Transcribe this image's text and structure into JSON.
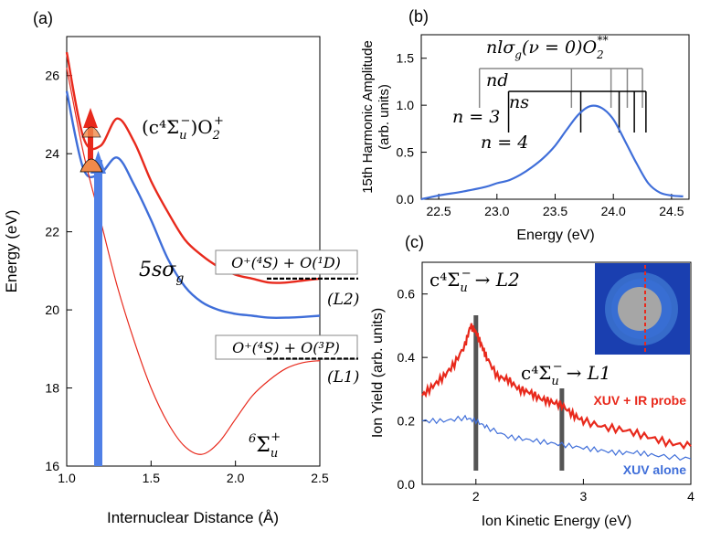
{
  "chart_data": [
    {
      "panel": "(a)",
      "type": "line",
      "xlabel": "Internuclear Distance (Å)",
      "ylabel": "Energy (eV)",
      "xlim": [
        1.0,
        2.5
      ],
      "ylim": [
        16,
        27
      ],
      "xticks": [
        "1.0",
        "1.5",
        "2.0",
        "2.5"
      ],
      "yticks": [
        "16",
        "18",
        "20",
        "22",
        "24",
        "26"
      ],
      "x": [
        1.0,
        1.1,
        1.2,
        1.3,
        1.4,
        1.5,
        1.6,
        1.7,
        1.8,
        1.9,
        2.0,
        2.1,
        2.2,
        2.3,
        2.4,
        2.5
      ],
      "series": [
        {
          "name": "c4Σu- O2+ (upper)",
          "color": "#e8291c",
          "values": [
            26.6,
            24.4,
            24.2,
            24.9,
            24.3,
            23.3,
            22.5,
            21.8,
            21.4,
            21.1,
            20.9,
            20.8,
            20.7,
            20.7,
            20.75,
            20.8
          ]
        },
        {
          "name": "5sσg Rydberg",
          "color": "#3f6ed9",
          "values": [
            25.6,
            23.6,
            23.5,
            23.9,
            23.2,
            22.3,
            21.3,
            20.6,
            20.2,
            20.0,
            19.9,
            19.85,
            19.8,
            19.8,
            19.82,
            19.85
          ]
        },
        {
          "name": "6Σu+ repulsive",
          "color": "#e8291c",
          "values": [
            26.2,
            24.0,
            22.3,
            20.6,
            19.2,
            18.0,
            17.1,
            16.5,
            16.3,
            16.6,
            17.2,
            17.8,
            18.2,
            18.5,
            18.65,
            18.7
          ]
        }
      ],
      "labels": {
        "upper_state_main": "(c⁴Σ",
        "upper_state_sub": "u",
        "upper_state_sup": "−",
        "upper_state_tail": ")O",
        "upper_state_tail_sub": "2",
        "upper_state_tail_sup": "+",
        "rydberg_main": "5sσ",
        "rydberg_sub": "g",
        "repulsive_sup_pre": "6",
        "repulsive_main": "Σ",
        "repulsive_sub": "u",
        "repulsive_sup": "+",
        "limit_L2_box": "O⁺(⁴S) + O(¹D)",
        "limit_L2_tag": "(L2)",
        "limit_L1_box": "O⁺(⁴S) + O(³P)",
        "limit_L1_tag": "(L1)"
      },
      "limits_ev": {
        "L2": 20.8,
        "L1": 18.75
      }
    },
    {
      "panel": "(b)",
      "type": "line",
      "xlabel": "Energy (eV)",
      "ylabel_line1": "15th Harmonic Amplitude",
      "ylabel_line2": "(arb. units)",
      "xlim": [
        22.35,
        24.65
      ],
      "ylim": [
        0,
        1.75
      ],
      "xticks": [
        "22.5",
        "23.0",
        "23.5",
        "24.0",
        "24.5"
      ],
      "yticks": [
        "0.0",
        "0.5",
        "1.0",
        "1.5"
      ],
      "series": [
        {
          "name": "15th harmonic",
          "color": "#3f6ed9",
          "x": [
            22.35,
            22.5,
            22.7,
            22.9,
            23.0,
            23.1,
            23.2,
            23.3,
            23.4,
            23.5,
            23.6,
            23.7,
            23.8,
            23.9,
            24.0,
            24.1,
            24.2,
            24.3,
            24.4,
            24.5,
            24.6
          ],
          "values": [
            0.0,
            0.04,
            0.08,
            0.13,
            0.17,
            0.2,
            0.26,
            0.34,
            0.44,
            0.57,
            0.74,
            0.9,
            0.99,
            0.97,
            0.85,
            0.62,
            0.38,
            0.17,
            0.07,
            0.04,
            0.03
          ]
        }
      ],
      "labels": {
        "series_label_main": "nlσ",
        "series_label_sub": "g",
        "series_label_mid": "(ν = 0)O",
        "series_label_tail_sub": "2",
        "series_label_tail_sup": "**",
        "nd_label": "nd",
        "ns_label": "ns",
        "n3_label": "n = 3",
        "n4_label": "n = 4"
      },
      "nd_lines_ev": [
        23.64,
        23.98,
        24.12,
        24.25
      ],
      "ns_lines_ev": [
        23.72,
        24.05,
        24.18,
        24.28
      ]
    },
    {
      "panel": "(c)",
      "type": "line",
      "xlabel": "Ion Kinetic Energy (eV)",
      "ylabel": "Ion Yield (arb. units)",
      "xlim": [
        1.5,
        4.0
      ],
      "ylim": [
        0,
        0.7
      ],
      "xticks": [
        "2",
        "3",
        "4"
      ],
      "yticks": [
        "0.0",
        "0.2",
        "0.4",
        "0.6"
      ],
      "series": [
        {
          "name": "XUV + IR probe",
          "color": "#e8291c",
          "x": [
            1.5,
            1.6,
            1.7,
            1.8,
            1.9,
            1.95,
            2.0,
            2.05,
            2.1,
            2.2,
            2.3,
            2.4,
            2.5,
            2.6,
            2.7,
            2.8,
            2.9,
            3.0,
            3.2,
            3.4,
            3.6,
            3.8,
            4.0
          ],
          "values": [
            0.28,
            0.31,
            0.34,
            0.38,
            0.44,
            0.5,
            0.48,
            0.44,
            0.4,
            0.34,
            0.33,
            0.3,
            0.29,
            0.27,
            0.26,
            0.25,
            0.22,
            0.2,
            0.18,
            0.17,
            0.15,
            0.13,
            0.12
          ]
        },
        {
          "name": "XUV alone",
          "color": "#3f6ed9",
          "x": [
            1.5,
            1.7,
            1.9,
            2.0,
            2.1,
            2.3,
            2.5,
            2.7,
            2.9,
            3.1,
            3.3,
            3.5,
            3.7,
            4.0
          ],
          "values": [
            0.2,
            0.2,
            0.21,
            0.2,
            0.18,
            0.15,
            0.14,
            0.13,
            0.12,
            0.11,
            0.1,
            0.1,
            0.09,
            0.08
          ]
        }
      ],
      "markers_ev": [
        2.0,
        2.8
      ],
      "labels": {
        "legend_red": "XUV + IR probe",
        "legend_blue": "XUV alone",
        "arrow_L2_main": "c⁴Σ",
        "arrow_L2_sub": "u",
        "arrow_L2_sup": "−",
        "arrow_L2_tail": "→ L2",
        "arrow_L1_main": "c⁴Σ",
        "arrow_L1_sub": "u",
        "arrow_L1_sup": "−",
        "arrow_L1_tail": "→ L1"
      }
    }
  ]
}
